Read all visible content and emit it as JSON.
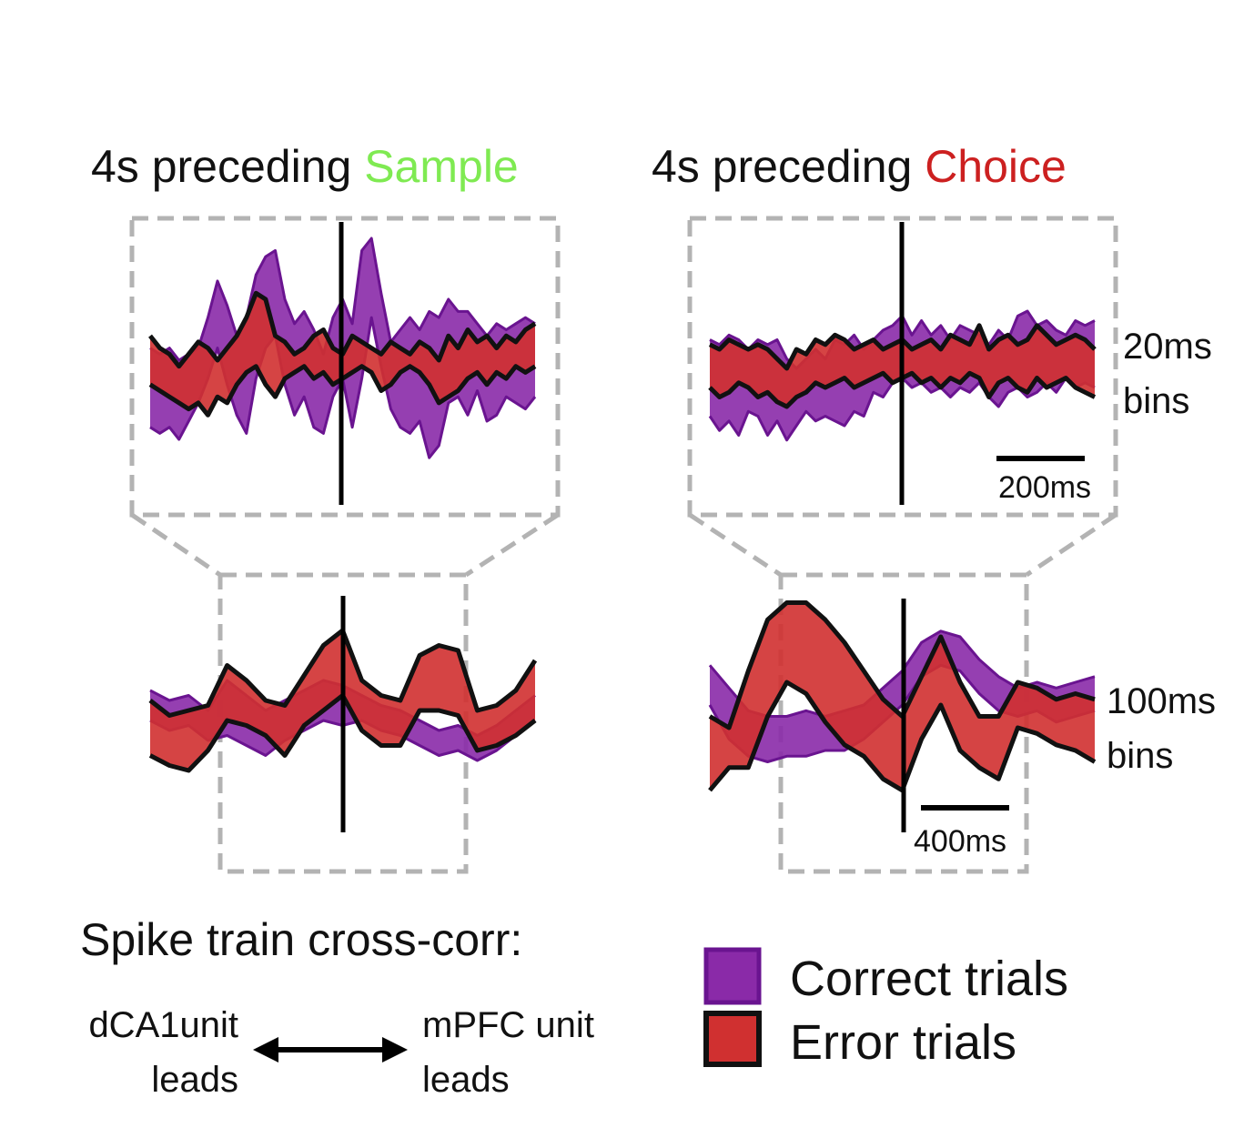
{
  "colors": {
    "correct": "#8a2aa8",
    "correct_edge": "#6a1490",
    "error": "#d03030",
    "error_edge": "#111111",
    "sample": "#7fea52",
    "choice": "#cc2020"
  },
  "panels": {
    "sample": {
      "prefix": "4s preceding ",
      "word": "Sample"
    },
    "choice": {
      "prefix": "4s preceding ",
      "word": "Choice"
    }
  },
  "labels": {
    "bins20": [
      "20ms",
      "bins"
    ],
    "bins100": [
      "100ms",
      "bins"
    ],
    "scale200": "200ms",
    "scale400": "400ms"
  },
  "footer": {
    "heading": "Spike train cross-corr:",
    "left": [
      "dCA1unit",
      "leads"
    ],
    "right": [
      "mPFC unit",
      "leads"
    ]
  },
  "legend": [
    {
      "name": "Correct trials",
      "color_key": "correct"
    },
    {
      "name": "Error trials",
      "color_key": "error"
    }
  ],
  "chart_data": [
    {
      "id": "sample-20ms",
      "type": "area",
      "title": "4s preceding Sample",
      "bin": "20ms bins",
      "xlim": [
        -1,
        1
      ],
      "ylim": [
        -1,
        1
      ],
      "series": [
        {
          "name": "Correct trials",
          "x": [
            -1,
            -0.95,
            -0.9,
            -0.85,
            -0.8,
            -0.75,
            -0.7,
            -0.65,
            -0.6,
            -0.55,
            -0.5,
            -0.45,
            -0.4,
            -0.35,
            -0.3,
            -0.25,
            -0.2,
            -0.15,
            -0.1,
            -0.05,
            0,
            0.05,
            0.1,
            0.15,
            0.2,
            0.25,
            0.3,
            0.35,
            0.4,
            0.45,
            0.5,
            0.55,
            0.6,
            0.65,
            0.7,
            0.75,
            0.8,
            0.85,
            0.9,
            0.95,
            1
          ],
          "upper": [
            0.1,
            0.05,
            0.1,
            0.0,
            0.05,
            0.1,
            0.35,
            0.65,
            0.45,
            0.2,
            0.35,
            0.7,
            0.85,
            0.9,
            0.5,
            0.3,
            0.4,
            0.25,
            0.05,
            0.35,
            0.5,
            0.3,
            0.9,
            1.0,
            0.55,
            0.15,
            0.25,
            0.35,
            0.25,
            0.4,
            0.35,
            0.5,
            0.4,
            0.4,
            0.3,
            0.2,
            0.3,
            0.25,
            0.3,
            0.35,
            0.3
          ],
          "lower": [
            -0.55,
            -0.6,
            -0.55,
            -0.65,
            -0.5,
            -0.35,
            -0.15,
            0.1,
            -0.2,
            -0.45,
            -0.6,
            -0.15,
            0.1,
            0.2,
            -0.2,
            -0.45,
            -0.3,
            -0.55,
            -0.6,
            -0.3,
            -0.15,
            -0.55,
            -0.15,
            0.35,
            -0.05,
            -0.4,
            -0.55,
            -0.6,
            -0.5,
            -0.8,
            -0.7,
            -0.35,
            -0.3,
            -0.45,
            -0.25,
            -0.5,
            -0.45,
            -0.3,
            -0.35,
            -0.4,
            -0.3
          ]
        },
        {
          "name": "Error trials",
          "x": [
            -1,
            -0.95,
            -0.9,
            -0.85,
            -0.8,
            -0.75,
            -0.7,
            -0.65,
            -0.6,
            -0.55,
            -0.5,
            -0.45,
            -0.4,
            -0.35,
            -0.3,
            -0.25,
            -0.2,
            -0.15,
            -0.1,
            -0.05,
            0,
            0.05,
            0.1,
            0.15,
            0.2,
            0.25,
            0.3,
            0.35,
            0.4,
            0.45,
            0.5,
            0.55,
            0.6,
            0.65,
            0.7,
            0.75,
            0.8,
            0.85,
            0.9,
            0.95,
            1
          ],
          "upper": [
            0.2,
            0.1,
            0.05,
            -0.05,
            0.05,
            0.15,
            0.1,
            0.0,
            0.1,
            0.2,
            0.35,
            0.55,
            0.5,
            0.2,
            0.15,
            0.05,
            0.1,
            0.2,
            0.25,
            0.1,
            0.05,
            0.2,
            0.15,
            0.1,
            0.05,
            0.15,
            0.1,
            0.05,
            0.15,
            0.1,
            0.0,
            0.2,
            0.1,
            0.25,
            0.15,
            0.2,
            0.1,
            0.2,
            0.15,
            0.25,
            0.3
          ],
          "lower": [
            -0.2,
            -0.25,
            -0.3,
            -0.35,
            -0.4,
            -0.35,
            -0.45,
            -0.3,
            -0.35,
            -0.2,
            -0.1,
            -0.05,
            -0.2,
            -0.3,
            -0.15,
            -0.1,
            -0.05,
            -0.15,
            -0.1,
            -0.2,
            -0.15,
            -0.1,
            -0.05,
            -0.1,
            -0.25,
            -0.2,
            -0.1,
            -0.05,
            -0.1,
            -0.2,
            -0.35,
            -0.3,
            -0.25,
            -0.15,
            -0.1,
            -0.2,
            -0.1,
            -0.15,
            -0.05,
            -0.1,
            -0.05
          ]
        }
      ]
    },
    {
      "id": "choice-20ms",
      "type": "area",
      "title": "4s preceding Choice",
      "bin": "20ms bins",
      "scale_bar": "200ms",
      "xlim": [
        -1,
        1
      ],
      "ylim": [
        -1,
        1
      ],
      "series": [
        {
          "name": "Correct trials",
          "x": [
            -1,
            -0.95,
            -0.9,
            -0.85,
            -0.8,
            -0.75,
            -0.7,
            -0.65,
            -0.6,
            -0.55,
            -0.5,
            -0.45,
            -0.4,
            -0.35,
            -0.3,
            -0.25,
            -0.2,
            -0.15,
            -0.1,
            -0.05,
            0,
            0.05,
            0.1,
            0.15,
            0.2,
            0.25,
            0.3,
            0.35,
            0.4,
            0.45,
            0.5,
            0.55,
            0.6,
            0.65,
            0.7,
            0.75,
            0.8,
            0.85,
            0.9,
            0.95,
            1
          ],
          "upper": [
            0.3,
            0.25,
            0.35,
            0.3,
            0.2,
            0.3,
            0.25,
            0.3,
            0.1,
            0.0,
            0.1,
            0.2,
            0.1,
            0.3,
            0.25,
            0.35,
            0.2,
            0.3,
            0.4,
            0.45,
            0.55,
            0.35,
            0.5,
            0.35,
            0.45,
            0.3,
            0.45,
            0.4,
            0.35,
            0.25,
            0.4,
            0.3,
            0.55,
            0.6,
            0.45,
            0.5,
            0.4,
            0.35,
            0.5,
            0.45,
            0.5
          ],
          "lower": [
            -0.5,
            -0.65,
            -0.55,
            -0.7,
            -0.45,
            -0.5,
            -0.7,
            -0.55,
            -0.75,
            -0.6,
            -0.45,
            -0.55,
            -0.5,
            -0.55,
            -0.6,
            -0.45,
            -0.5,
            -0.25,
            -0.3,
            -0.15,
            -0.1,
            -0.2,
            -0.15,
            -0.25,
            -0.2,
            -0.3,
            -0.2,
            -0.25,
            -0.15,
            -0.3,
            -0.4,
            -0.25,
            -0.2,
            -0.3,
            -0.25,
            -0.15,
            -0.25,
            -0.1,
            -0.2,
            -0.15,
            -0.2
          ]
        },
        {
          "name": "Error trials",
          "x": [
            -1,
            -0.95,
            -0.9,
            -0.85,
            -0.8,
            -0.75,
            -0.7,
            -0.65,
            -0.6,
            -0.55,
            -0.5,
            -0.45,
            -0.4,
            -0.35,
            -0.3,
            -0.25,
            -0.2,
            -0.15,
            -0.1,
            -0.05,
            0,
            0.05,
            0.1,
            0.15,
            0.2,
            0.25,
            0.3,
            0.35,
            0.4,
            0.45,
            0.5,
            0.55,
            0.6,
            0.65,
            0.7,
            0.75,
            0.8,
            0.85,
            0.9,
            0.95,
            1
          ],
          "upper": [
            0.25,
            0.2,
            0.3,
            0.25,
            0.2,
            0.25,
            0.2,
            0.1,
            0.0,
            0.2,
            0.15,
            0.3,
            0.25,
            0.35,
            0.3,
            0.2,
            0.25,
            0.3,
            0.2,
            0.25,
            0.3,
            0.2,
            0.25,
            0.3,
            0.2,
            0.35,
            0.3,
            0.25,
            0.45,
            0.2,
            0.3,
            0.35,
            0.25,
            0.3,
            0.45,
            0.35,
            0.25,
            0.3,
            0.35,
            0.3,
            0.2
          ],
          "lower": [
            -0.2,
            -0.3,
            -0.25,
            -0.15,
            -0.2,
            -0.3,
            -0.25,
            -0.35,
            -0.4,
            -0.3,
            -0.25,
            -0.15,
            -0.2,
            -0.15,
            -0.1,
            -0.2,
            -0.15,
            -0.1,
            -0.05,
            -0.15,
            -0.1,
            -0.05,
            -0.15,
            -0.1,
            -0.2,
            -0.1,
            -0.15,
            -0.05,
            -0.1,
            -0.3,
            -0.15,
            -0.1,
            -0.2,
            -0.25,
            -0.1,
            -0.2,
            -0.15,
            -0.1,
            -0.2,
            -0.25,
            -0.3
          ]
        }
      ]
    },
    {
      "id": "sample-100ms",
      "type": "area",
      "title": "4s preceding Sample",
      "bin": "100ms bins",
      "xlim": [
        -1,
        1
      ],
      "ylim": [
        -1,
        1
      ],
      "series": [
        {
          "name": "Correct trials",
          "x": [
            -1,
            -0.9,
            -0.8,
            -0.7,
            -0.6,
            -0.5,
            -0.4,
            -0.3,
            -0.2,
            -0.1,
            0,
            0.1,
            0.2,
            0.3,
            0.4,
            0.5,
            0.6,
            0.7,
            0.8,
            0.9,
            1
          ],
          "upper": [
            0.1,
            0.0,
            0.05,
            -0.1,
            0.2,
            0.05,
            -0.1,
            0.0,
            0.1,
            0.2,
            0.15,
            0.05,
            -0.05,
            -0.1,
            -0.2,
            -0.3,
            -0.25,
            -0.35,
            -0.25,
            -0.1,
            0.05
          ],
          "lower": [
            -0.2,
            -0.3,
            -0.25,
            -0.4,
            -0.35,
            -0.45,
            -0.55,
            -0.4,
            -0.3,
            -0.2,
            -0.25,
            -0.2,
            -0.3,
            -0.35,
            -0.45,
            -0.55,
            -0.5,
            -0.6,
            -0.5,
            -0.35,
            -0.2
          ]
        },
        {
          "name": "Error trials",
          "x": [
            -1,
            -0.9,
            -0.8,
            -0.7,
            -0.6,
            -0.5,
            -0.4,
            -0.3,
            -0.2,
            -0.1,
            0,
            0.1,
            0.2,
            0.3,
            0.4,
            0.5,
            0.6,
            0.7,
            0.8,
            0.9,
            1
          ],
          "upper": [
            0.0,
            -0.15,
            -0.1,
            -0.05,
            0.35,
            0.2,
            0.0,
            -0.05,
            0.25,
            0.55,
            0.7,
            0.2,
            0.05,
            0.0,
            0.45,
            0.55,
            0.5,
            -0.1,
            -0.05,
            0.1,
            0.4
          ],
          "lower": [
            -0.55,
            -0.65,
            -0.7,
            -0.5,
            -0.2,
            -0.25,
            -0.35,
            -0.55,
            -0.25,
            -0.1,
            0.05,
            -0.3,
            -0.45,
            -0.45,
            -0.1,
            -0.1,
            -0.15,
            -0.5,
            -0.45,
            -0.35,
            -0.2
          ]
        }
      ]
    },
    {
      "id": "choice-100ms",
      "type": "area",
      "title": "4s preceding Choice",
      "bin": "100ms bins",
      "scale_bar": "400ms",
      "xlim": [
        -1,
        1
      ],
      "ylim": [
        -1,
        1
      ],
      "series": [
        {
          "name": "Correct trials",
          "x": [
            -1,
            -0.9,
            -0.8,
            -0.7,
            -0.6,
            -0.5,
            -0.4,
            -0.3,
            -0.2,
            -0.1,
            0,
            0.1,
            0.2,
            0.3,
            0.4,
            0.5,
            0.6,
            0.7,
            0.8,
            0.9,
            1
          ],
          "upper": [
            0.35,
            0.15,
            -0.05,
            -0.1,
            -0.1,
            -0.05,
            -0.1,
            -0.05,
            0.0,
            0.15,
            0.3,
            0.55,
            0.65,
            0.6,
            0.4,
            0.25,
            0.15,
            0.2,
            0.15,
            0.2,
            0.25
          ],
          "lower": [
            0.0,
            -0.3,
            -0.45,
            -0.5,
            -0.45,
            -0.45,
            -0.4,
            -0.4,
            -0.3,
            -0.15,
            0.0,
            0.25,
            0.35,
            0.3,
            0.1,
            -0.05,
            -0.1,
            -0.05,
            -0.15,
            -0.1,
            -0.05
          ]
        },
        {
          "name": "Error trials",
          "x": [
            -1,
            -0.9,
            -0.8,
            -0.7,
            -0.6,
            -0.5,
            -0.4,
            -0.3,
            -0.2,
            -0.1,
            0,
            0.1,
            0.2,
            0.3,
            0.4,
            0.5,
            0.6,
            0.7,
            0.8,
            0.9,
            1
          ],
          "upper": [
            -0.1,
            -0.2,
            0.3,
            0.75,
            0.9,
            0.9,
            0.75,
            0.55,
            0.3,
            0.05,
            -0.1,
            0.25,
            0.6,
            0.2,
            -0.1,
            -0.1,
            0.2,
            0.15,
            0.05,
            0.1,
            0.05
          ],
          "lower": [
            -0.75,
            -0.55,
            -0.55,
            -0.1,
            0.2,
            0.1,
            -0.15,
            -0.35,
            -0.45,
            -0.65,
            -0.75,
            -0.3,
            0.0,
            -0.4,
            -0.55,
            -0.65,
            -0.2,
            -0.25,
            -0.35,
            -0.4,
            -0.5
          ]
        }
      ]
    }
  ]
}
